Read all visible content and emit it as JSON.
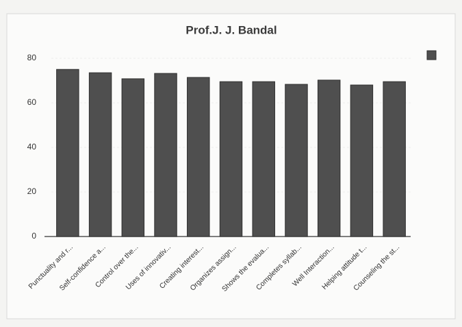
{
  "chart_data": {
    "type": "bar",
    "title": "Prof.J. J. Bandal",
    "categories": [
      "Punctuality and r...",
      "Self-confidence a...",
      "Control over the...",
      "Uses of innovativ...",
      "Creating interest...",
      "Organizes assign...",
      "Shows the evalua...",
      "Completes syllab...",
      "Well Interaction...",
      "Helping attitude t...",
      "Counseling the st..."
    ],
    "values": [
      75,
      73.5,
      70.8,
      73.2,
      71.4,
      69.5,
      69.5,
      68.3,
      70.2,
      68,
      69.5
    ],
    "color": "#4f4f4f",
    "ylim": [
      0,
      80
    ],
    "yticks": [
      0,
      20,
      40,
      60,
      80
    ],
    "grid": true,
    "legend": "right"
  }
}
